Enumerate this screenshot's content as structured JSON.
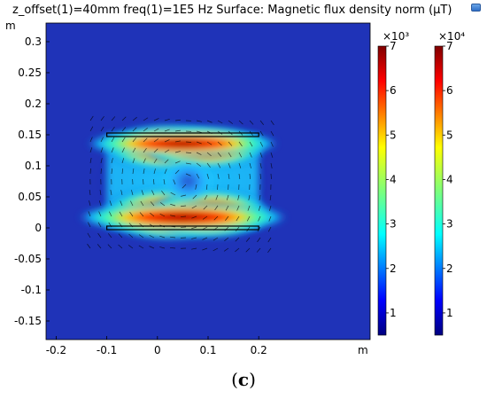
{
  "title": "z_offset(1)=40mm freq(1)=1E5 Hz Surface: Magnetic flux density norm (µT)",
  "caption_open": "(",
  "caption_letter": "c",
  "caption_close": ")",
  "colors": {
    "background_field": "#1f33b8",
    "rod_outline": "#000000"
  },
  "icons": {
    "corner": "chart-settings-icon"
  },
  "chart_data": {
    "type": "heatmap",
    "title": "z_offset(1)=40mm freq(1)=1E5 Hz Surface: Magnetic flux density norm (µT)",
    "xlabel": "m",
    "ylabel": "m",
    "xlim": [
      -0.22,
      0.42
    ],
    "ylim": [
      -0.18,
      0.33
    ],
    "xticks": [
      -0.2,
      -0.1,
      0,
      0.1,
      0.2
    ],
    "xtick_labels": [
      "-0.2",
      "-0.1",
      "0",
      "0.1",
      "0.2"
    ],
    "yticks": [
      -0.15,
      -0.1,
      -0.05,
      0,
      0.05,
      0.1,
      0.15,
      0.2,
      0.25,
      0.3
    ],
    "ytick_labels": [
      "-0.15",
      "-0.1",
      "-0.05",
      "0",
      "0.05",
      "0.1",
      "0.15",
      "0.2",
      "0.25",
      "0.3"
    ],
    "region": {
      "x": [
        -0.1,
        0.2
      ],
      "y": [
        0,
        0.15
      ]
    },
    "grid": false,
    "colorbars": [
      {
        "multiplier": "×10³",
        "range": [
          0.5,
          7
        ],
        "ticks": [
          1,
          2,
          3,
          4,
          5,
          6,
          7
        ],
        "tick_labels": [
          "1",
          "2",
          "3",
          "4",
          "5",
          "6",
          "7"
        ]
      },
      {
        "multiplier": "×10⁴",
        "range": [
          0.5,
          7
        ],
        "ticks": [
          1,
          2,
          3,
          4,
          5,
          6,
          7
        ],
        "tick_labels": [
          "1",
          "2",
          "3",
          "4",
          "5",
          "6",
          "7"
        ]
      }
    ]
  }
}
